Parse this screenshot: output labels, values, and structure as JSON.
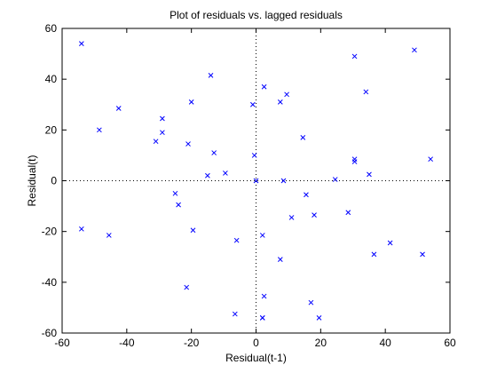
{
  "chart_data": {
    "type": "scatter",
    "title": "Plot of residuals vs. lagged residuals",
    "xlabel": "Residual(t-1)",
    "ylabel": "Residual(t)",
    "xlim": [
      -60,
      60
    ],
    "ylim": [
      -60,
      60
    ],
    "xticks": [
      -60,
      -40,
      -20,
      0,
      20,
      40,
      60
    ],
    "yticks": [
      -60,
      -40,
      -20,
      0,
      20,
      40,
      60
    ],
    "marker": "x",
    "marker_color": "#0000ff",
    "reference_lines": {
      "x": 0,
      "y": 0,
      "style": "dotted"
    },
    "grid": false,
    "legend": null,
    "x": [
      -54,
      -48.5,
      -42.5,
      -31,
      -29,
      -29,
      -20,
      -21,
      -14,
      -13,
      -9.5,
      -15,
      -25,
      -24,
      -54,
      -45.5,
      -19.5,
      -6,
      -21.5,
      -6.5,
      -1,
      -0.5,
      0,
      2.5,
      9.5,
      7.5,
      14.5,
      8.5,
      2,
      2.5,
      11,
      15.5,
      18,
      7.5,
      2,
      2,
      17,
      19.5,
      24.5,
      28.5,
      30.5,
      30.5,
      30.5,
      34,
      35,
      36.5,
      41.5,
      49,
      51.5,
      54
    ],
    "y": [
      54,
      20,
      28.5,
      15.5,
      24.5,
      19,
      31,
      14.5,
      41.5,
      11,
      3,
      2,
      -5,
      -9.5,
      -19,
      -21.5,
      -19.5,
      -23.5,
      -42,
      -52.5,
      30,
      10,
      0,
      37,
      34,
      31,
      17,
      0,
      -21.5,
      -45.5,
      -14.5,
      -5.5,
      -13.5,
      -31,
      -54,
      -54,
      -48,
      -54,
      0.5,
      -12.5,
      49,
      8.5,
      7.5,
      35,
      2.5,
      -29,
      -24.5,
      51.5,
      -29,
      8.5
    ]
  }
}
